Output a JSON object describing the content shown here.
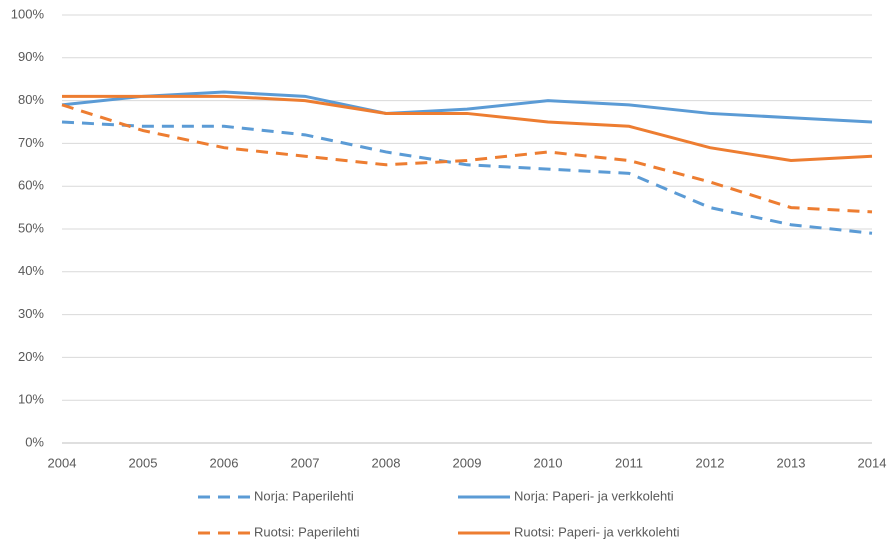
{
  "chart_data": {
    "type": "line",
    "x": [
      2004,
      2005,
      2006,
      2007,
      2008,
      2009,
      2010,
      2011,
      2012,
      2013,
      2014
    ],
    "xlim": [
      2004,
      2014
    ],
    "xticks": [
      2004,
      2005,
      2006,
      2007,
      2008,
      2009,
      2010,
      2011,
      2012,
      2013,
      2014
    ],
    "ylim": [
      0,
      100
    ],
    "yticks": [
      {
        "value": 0,
        "label": "0%"
      },
      {
        "value": 10,
        "label": "10%"
      },
      {
        "value": 20,
        "label": "20%"
      },
      {
        "value": 30,
        "label": "30%"
      },
      {
        "value": 40,
        "label": "40%"
      },
      {
        "value": 50,
        "label": "50%"
      },
      {
        "value": 60,
        "label": "60%"
      },
      {
        "value": 70,
        "label": "70%"
      },
      {
        "value": 80,
        "label": "80%"
      },
      {
        "value": 90,
        "label": "90%"
      },
      {
        "value": 100,
        "label": "100%"
      }
    ],
    "grid": true,
    "legend": "bottom",
    "series": [
      {
        "name": "Norja: Paperilehti",
        "color": "#5b9bd5",
        "dashed": true,
        "values": [
          75,
          74,
          74,
          72,
          68,
          65,
          64,
          63,
          55,
          51,
          49
        ]
      },
      {
        "name": "Norja: Paperi- ja verkkolehti",
        "color": "#5b9bd5",
        "dashed": false,
        "values": [
          79,
          81,
          82,
          81,
          77,
          78,
          80,
          79,
          77,
          76,
          75
        ]
      },
      {
        "name": "Ruotsi: Paperilehti",
        "color": "#ed7d31",
        "dashed": true,
        "values": [
          79,
          73,
          69,
          67,
          65,
          66,
          68,
          66,
          61,
          55,
          54
        ]
      },
      {
        "name": "Ruotsi: Paperi- ja verkkolehti",
        "color": "#ed7d31",
        "dashed": false,
        "values": [
          81,
          81,
          81,
          80,
          77,
          77,
          75,
          74,
          69,
          66,
          67
        ]
      }
    ]
  }
}
